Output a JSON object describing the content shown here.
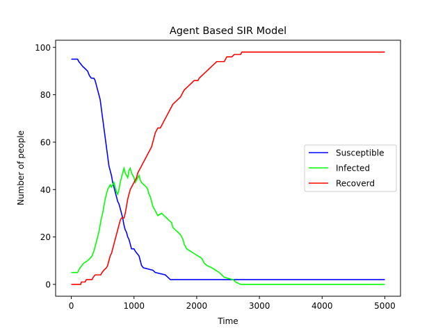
{
  "chart_data": {
    "type": "line",
    "title": "Agent Based SIR Model",
    "xlabel": "Time",
    "ylabel": "Number of people",
    "xlim": [
      -250,
      5250
    ],
    "ylim": [
      -5,
      103
    ],
    "xticks": [
      0,
      1000,
      2000,
      3000,
      4000,
      5000
    ],
    "yticks": [
      0,
      20,
      40,
      60,
      80,
      100
    ],
    "grid": false,
    "legend": {
      "placement": "center-right"
    },
    "series": [
      {
        "name": "Susceptible",
        "color": "#0000ff",
        "points": [
          [
            0,
            95
          ],
          [
            100,
            95
          ],
          [
            120,
            94
          ],
          [
            150,
            93
          ],
          [
            180,
            92
          ],
          [
            220,
            91
          ],
          [
            260,
            90
          ],
          [
            290,
            88
          ],
          [
            320,
            87
          ],
          [
            360,
            87
          ],
          [
            380,
            86
          ],
          [
            400,
            84
          ],
          [
            420,
            82
          ],
          [
            440,
            80
          ],
          [
            460,
            78
          ],
          [
            470,
            76
          ],
          [
            480,
            74
          ],
          [
            490,
            72
          ],
          [
            500,
            70
          ],
          [
            510,
            68
          ],
          [
            520,
            66
          ],
          [
            530,
            64
          ],
          [
            540,
            62
          ],
          [
            550,
            60
          ],
          [
            560,
            58
          ],
          [
            570,
            56
          ],
          [
            580,
            54
          ],
          [
            590,
            52
          ],
          [
            600,
            50
          ],
          [
            620,
            48
          ],
          [
            640,
            46
          ],
          [
            660,
            43
          ],
          [
            680,
            41
          ],
          [
            700,
            39
          ],
          [
            720,
            37
          ],
          [
            740,
            35
          ],
          [
            760,
            34
          ],
          [
            780,
            32
          ],
          [
            800,
            30
          ],
          [
            820,
            28
          ],
          [
            840,
            25
          ],
          [
            860,
            23
          ],
          [
            880,
            22
          ],
          [
            900,
            20
          ],
          [
            920,
            19
          ],
          [
            940,
            17
          ],
          [
            960,
            15
          ],
          [
            1000,
            15
          ],
          [
            1020,
            14
          ],
          [
            1050,
            13
          ],
          [
            1080,
            12
          ],
          [
            1100,
            10
          ],
          [
            1120,
            8
          ],
          [
            1150,
            7
          ],
          [
            1300,
            6
          ],
          [
            1340,
            5
          ],
          [
            1500,
            4
          ],
          [
            1540,
            3
          ],
          [
            1580,
            2
          ],
          [
            2500,
            2
          ],
          [
            5000,
            2
          ]
        ]
      },
      {
        "name": "Infected",
        "color": "#00ff00",
        "points": [
          [
            0,
            5
          ],
          [
            100,
            5
          ],
          [
            120,
            6
          ],
          [
            140,
            7
          ],
          [
            170,
            8
          ],
          [
            200,
            9
          ],
          [
            260,
            10
          ],
          [
            300,
            11
          ],
          [
            330,
            12
          ],
          [
            360,
            14
          ],
          [
            380,
            16
          ],
          [
            400,
            18
          ],
          [
            420,
            20
          ],
          [
            440,
            22
          ],
          [
            460,
            25
          ],
          [
            480,
            28
          ],
          [
            500,
            30
          ],
          [
            520,
            33
          ],
          [
            540,
            36
          ],
          [
            560,
            38
          ],
          [
            580,
            40
          ],
          [
            600,
            41
          ],
          [
            620,
            42
          ],
          [
            640,
            41
          ],
          [
            660,
            42
          ],
          [
            680,
            43
          ],
          [
            700,
            41
          ],
          [
            720,
            39
          ],
          [
            740,
            38
          ],
          [
            760,
            40
          ],
          [
            780,
            43
          ],
          [
            800,
            45
          ],
          [
            820,
            47
          ],
          [
            840,
            49
          ],
          [
            860,
            47
          ],
          [
            880,
            46
          ],
          [
            900,
            45
          ],
          [
            920,
            48
          ],
          [
            940,
            49
          ],
          [
            960,
            47
          ],
          [
            980,
            46
          ],
          [
            1000,
            45
          ],
          [
            1020,
            43
          ],
          [
            1040,
            44
          ],
          [
            1060,
            45
          ],
          [
            1080,
            46
          ],
          [
            1100,
            44
          ],
          [
            1120,
            43
          ],
          [
            1160,
            42
          ],
          [
            1200,
            41
          ],
          [
            1220,
            40
          ],
          [
            1240,
            38
          ],
          [
            1260,
            37
          ],
          [
            1280,
            35
          ],
          [
            1300,
            33
          ],
          [
            1320,
            32
          ],
          [
            1360,
            30
          ],
          [
            1380,
            29
          ],
          [
            1440,
            30
          ],
          [
            1480,
            29
          ],
          [
            1520,
            28
          ],
          [
            1560,
            27
          ],
          [
            1600,
            26
          ],
          [
            1620,
            24
          ],
          [
            1660,
            23
          ],
          [
            1700,
            22
          ],
          [
            1740,
            21
          ],
          [
            1780,
            19
          ],
          [
            1800,
            17
          ],
          [
            1840,
            15
          ],
          [
            1900,
            14
          ],
          [
            1960,
            13
          ],
          [
            2020,
            12
          ],
          [
            2080,
            11
          ],
          [
            2120,
            9
          ],
          [
            2160,
            8
          ],
          [
            2240,
            7
          ],
          [
            2300,
            6
          ],
          [
            2360,
            5
          ],
          [
            2400,
            4
          ],
          [
            2440,
            3
          ],
          [
            2580,
            2
          ],
          [
            2620,
            1
          ],
          [
            2700,
            0
          ],
          [
            5000,
            0
          ]
        ]
      },
      {
        "name": "Recoverd",
        "color": "#ff0000",
        "points": [
          [
            0,
            0
          ],
          [
            150,
            0
          ],
          [
            160,
            1
          ],
          [
            220,
            1
          ],
          [
            240,
            2
          ],
          [
            330,
            2
          ],
          [
            350,
            3
          ],
          [
            380,
            4
          ],
          [
            470,
            4
          ],
          [
            490,
            5
          ],
          [
            520,
            6
          ],
          [
            560,
            7
          ],
          [
            580,
            8
          ],
          [
            600,
            10
          ],
          [
            620,
            12
          ],
          [
            640,
            13
          ],
          [
            660,
            15
          ],
          [
            680,
            17
          ],
          [
            700,
            19
          ],
          [
            720,
            21
          ],
          [
            740,
            23
          ],
          [
            760,
            25
          ],
          [
            780,
            27
          ],
          [
            800,
            28
          ],
          [
            840,
            28
          ],
          [
            860,
            30
          ],
          [
            880,
            33
          ],
          [
            900,
            36
          ],
          [
            920,
            38
          ],
          [
            940,
            40
          ],
          [
            960,
            41
          ],
          [
            980,
            42
          ],
          [
            1000,
            43
          ],
          [
            1020,
            44
          ],
          [
            1040,
            45
          ],
          [
            1060,
            47
          ],
          [
            1080,
            48
          ],
          [
            1100,
            49
          ],
          [
            1120,
            50
          ],
          [
            1140,
            51
          ],
          [
            1160,
            52
          ],
          [
            1180,
            53
          ],
          [
            1200,
            54
          ],
          [
            1220,
            55
          ],
          [
            1240,
            56
          ],
          [
            1260,
            57
          ],
          [
            1280,
            58
          ],
          [
            1300,
            60
          ],
          [
            1320,
            62
          ],
          [
            1340,
            64
          ],
          [
            1360,
            65
          ],
          [
            1380,
            66
          ],
          [
            1420,
            66
          ],
          [
            1440,
            67
          ],
          [
            1460,
            68
          ],
          [
            1480,
            69
          ],
          [
            1500,
            70
          ],
          [
            1520,
            71
          ],
          [
            1540,
            72
          ],
          [
            1560,
            73
          ],
          [
            1580,
            74
          ],
          [
            1600,
            75
          ],
          [
            1620,
            76
          ],
          [
            1660,
            77
          ],
          [
            1700,
            78
          ],
          [
            1740,
            79
          ],
          [
            1760,
            80
          ],
          [
            1780,
            81
          ],
          [
            1800,
            82
          ],
          [
            1840,
            83
          ],
          [
            1880,
            84
          ],
          [
            1920,
            85
          ],
          [
            1960,
            86
          ],
          [
            2020,
            86
          ],
          [
            2040,
            87
          ],
          [
            2080,
            88
          ],
          [
            2120,
            89
          ],
          [
            2160,
            90
          ],
          [
            2200,
            91
          ],
          [
            2240,
            92
          ],
          [
            2280,
            93
          ],
          [
            2320,
            94
          ],
          [
            2440,
            94
          ],
          [
            2460,
            95
          ],
          [
            2480,
            96
          ],
          [
            2520,
            96
          ],
          [
            2560,
            96
          ],
          [
            2600,
            97
          ],
          [
            2700,
            97
          ],
          [
            2720,
            98
          ],
          [
            5000,
            98
          ]
        ]
      }
    ]
  }
}
